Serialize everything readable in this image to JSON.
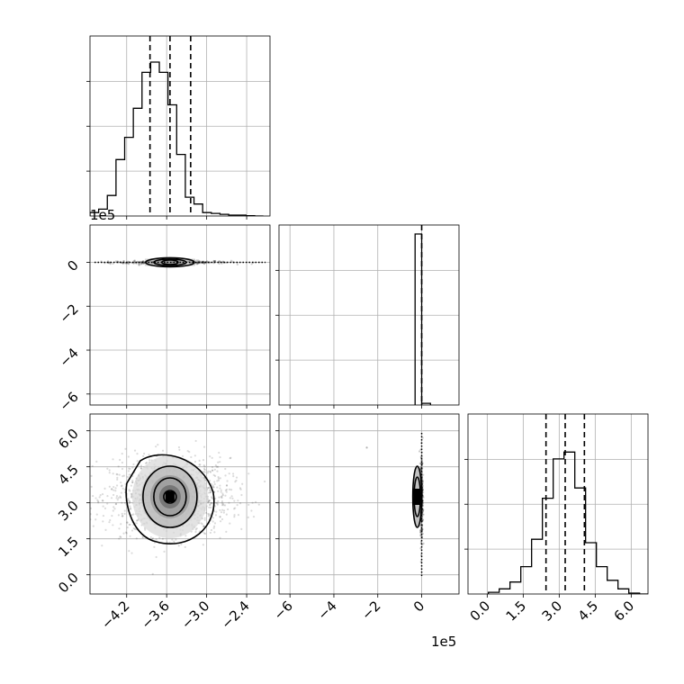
{
  "chart_data": {
    "type": "corner",
    "description_free": true,
    "parameters": 3,
    "axes": {
      "p0": {
        "range": [
          -475000.0,
          -205000.0
        ],
        "ticks": [
          -420000.0,
          -360000.0,
          -300000.0,
          -240000.0
        ],
        "tick_labels": [
          "−4.2",
          "−3.6",
          "−3.0",
          "−2.4"
        ],
        "offset_label": "1e5",
        "quantiles": [
          -385000.0,
          -355000.0,
          -324000.0
        ],
        "hist_x": [
          -475000.0,
          -462000.0,
          -449000.0,
          -436000.0,
          -423000.0,
          -410000.0,
          -397000.0,
          -384000.0,
          -371000.0,
          -358000.0,
          -345000.0,
          -332000.0,
          -319000.0,
          -306000.0,
          -293000.0,
          -280000.0,
          -267000.0,
          -254000.0,
          -241000.0,
          -228000.0,
          -215000.0
        ],
        "hist_counts": [
          0.02,
          0.04,
          0.12,
          0.33,
          0.46,
          0.63,
          0.84,
          0.9,
          0.84,
          0.65,
          0.36,
          0.11,
          0.07,
          0.02,
          0.015,
          0.01,
          0.005,
          0.005,
          0.002,
          0.0
        ],
        "hist_ylim": [
          0,
          1.0
        ]
      },
      "p1": {
        "range": [
          -650000.0,
          170000.0
        ],
        "ticks": [
          -600000.0,
          -400000.0,
          -200000.0,
          0
        ],
        "tick_labels": [
          "−6",
          "−4",
          "−2",
          "0"
        ],
        "offset_label": "1e5",
        "quantiles": [
          0
        ],
        "hist_bins": [
          [
            -30000.0,
            0,
            1.0
          ],
          [
            0,
            40000.0,
            0.01
          ]
        ],
        "hist_ylim": [
          0,
          1.0
        ]
      },
      "p2": {
        "range": [
          -80000.0,
          670000.0
        ],
        "ticks": [
          0,
          150000.0,
          300000.0,
          450000.0,
          600000.0
        ],
        "tick_labels": [
          "0.0",
          "1.5",
          "3.0",
          "4.5",
          "6.0"
        ],
        "offset_label": "1e5",
        "quantiles": [
          245000.0,
          325000.0,
          405000.0
        ],
        "hist_x": [
          5000.0,
          50000.0,
          95000.0,
          140000.0,
          185000.0,
          230000.0,
          275000.0,
          320000.0,
          365000.0,
          410000.0,
          455000.0,
          500000.0,
          545000.0,
          590000.0,
          635000.0,
          670000.0
        ],
        "hist_counts": [
          0.01,
          0.03,
          0.07,
          0.16,
          0.32,
          0.56,
          0.79,
          0.83,
          0.62,
          0.3,
          0.16,
          0.08,
          0.03,
          0.005,
          0.0
        ],
        "hist_ylim": [
          0,
          1.0
        ]
      }
    },
    "offset_labels_visible": [
      "1e5",
      "1e5"
    ],
    "grid": true
  }
}
